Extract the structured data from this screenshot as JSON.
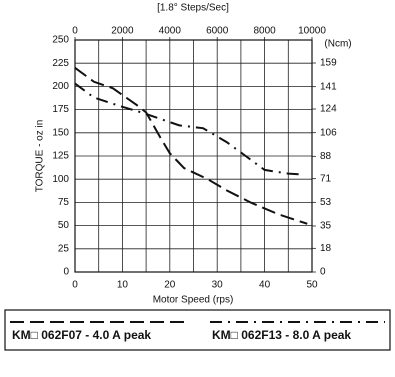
{
  "chart_data": {
    "type": "line",
    "x_label": "Motor Speed (rps)",
    "y_label": "TORQUE - oz in",
    "x2_label": "[1.8° Steps/Sec]",
    "y2_label": "(Ncm)",
    "xlim": [
      0,
      50
    ],
    "xticks": [
      0,
      10,
      20,
      30,
      40,
      50
    ],
    "x_minor_ticks": [
      5,
      15,
      25,
      35,
      45
    ],
    "x2lim": [
      0,
      10000
    ],
    "x2ticks": [
      0,
      2000,
      4000,
      6000,
      8000,
      10000
    ],
    "ylim": [
      0,
      250
    ],
    "yticks": [
      0,
      25,
      50,
      75,
      100,
      125,
      150,
      175,
      200,
      225,
      250
    ],
    "y2lim": [
      0,
      176.5
    ],
    "y2ticks": [
      0,
      18,
      35,
      53,
      71,
      88,
      106,
      124,
      141,
      159
    ],
    "grid": true,
    "series": [
      {
        "name": "KM□ 062F07 - 4.0 A peak",
        "color": "#111111",
        "style": "dashed",
        "x": [
          0,
          4,
          8,
          13,
          15,
          18,
          20,
          23,
          28,
          32,
          37,
          43,
          49
        ],
        "values": [
          220,
          205,
          198,
          180,
          172,
          145,
          128,
          112,
          100,
          88,
          75,
          62,
          52
        ]
      },
      {
        "name": "KM□ 062F13 - 8.0 A peak",
        "color": "#111111",
        "style": "dashdot",
        "x": [
          0,
          4,
          10,
          14,
          18,
          22,
          27,
          32,
          36,
          40,
          45,
          48
        ],
        "values": [
          203,
          188,
          178,
          172,
          165,
          158,
          155,
          140,
          125,
          110,
          106,
          105
        ]
      }
    ]
  }
}
